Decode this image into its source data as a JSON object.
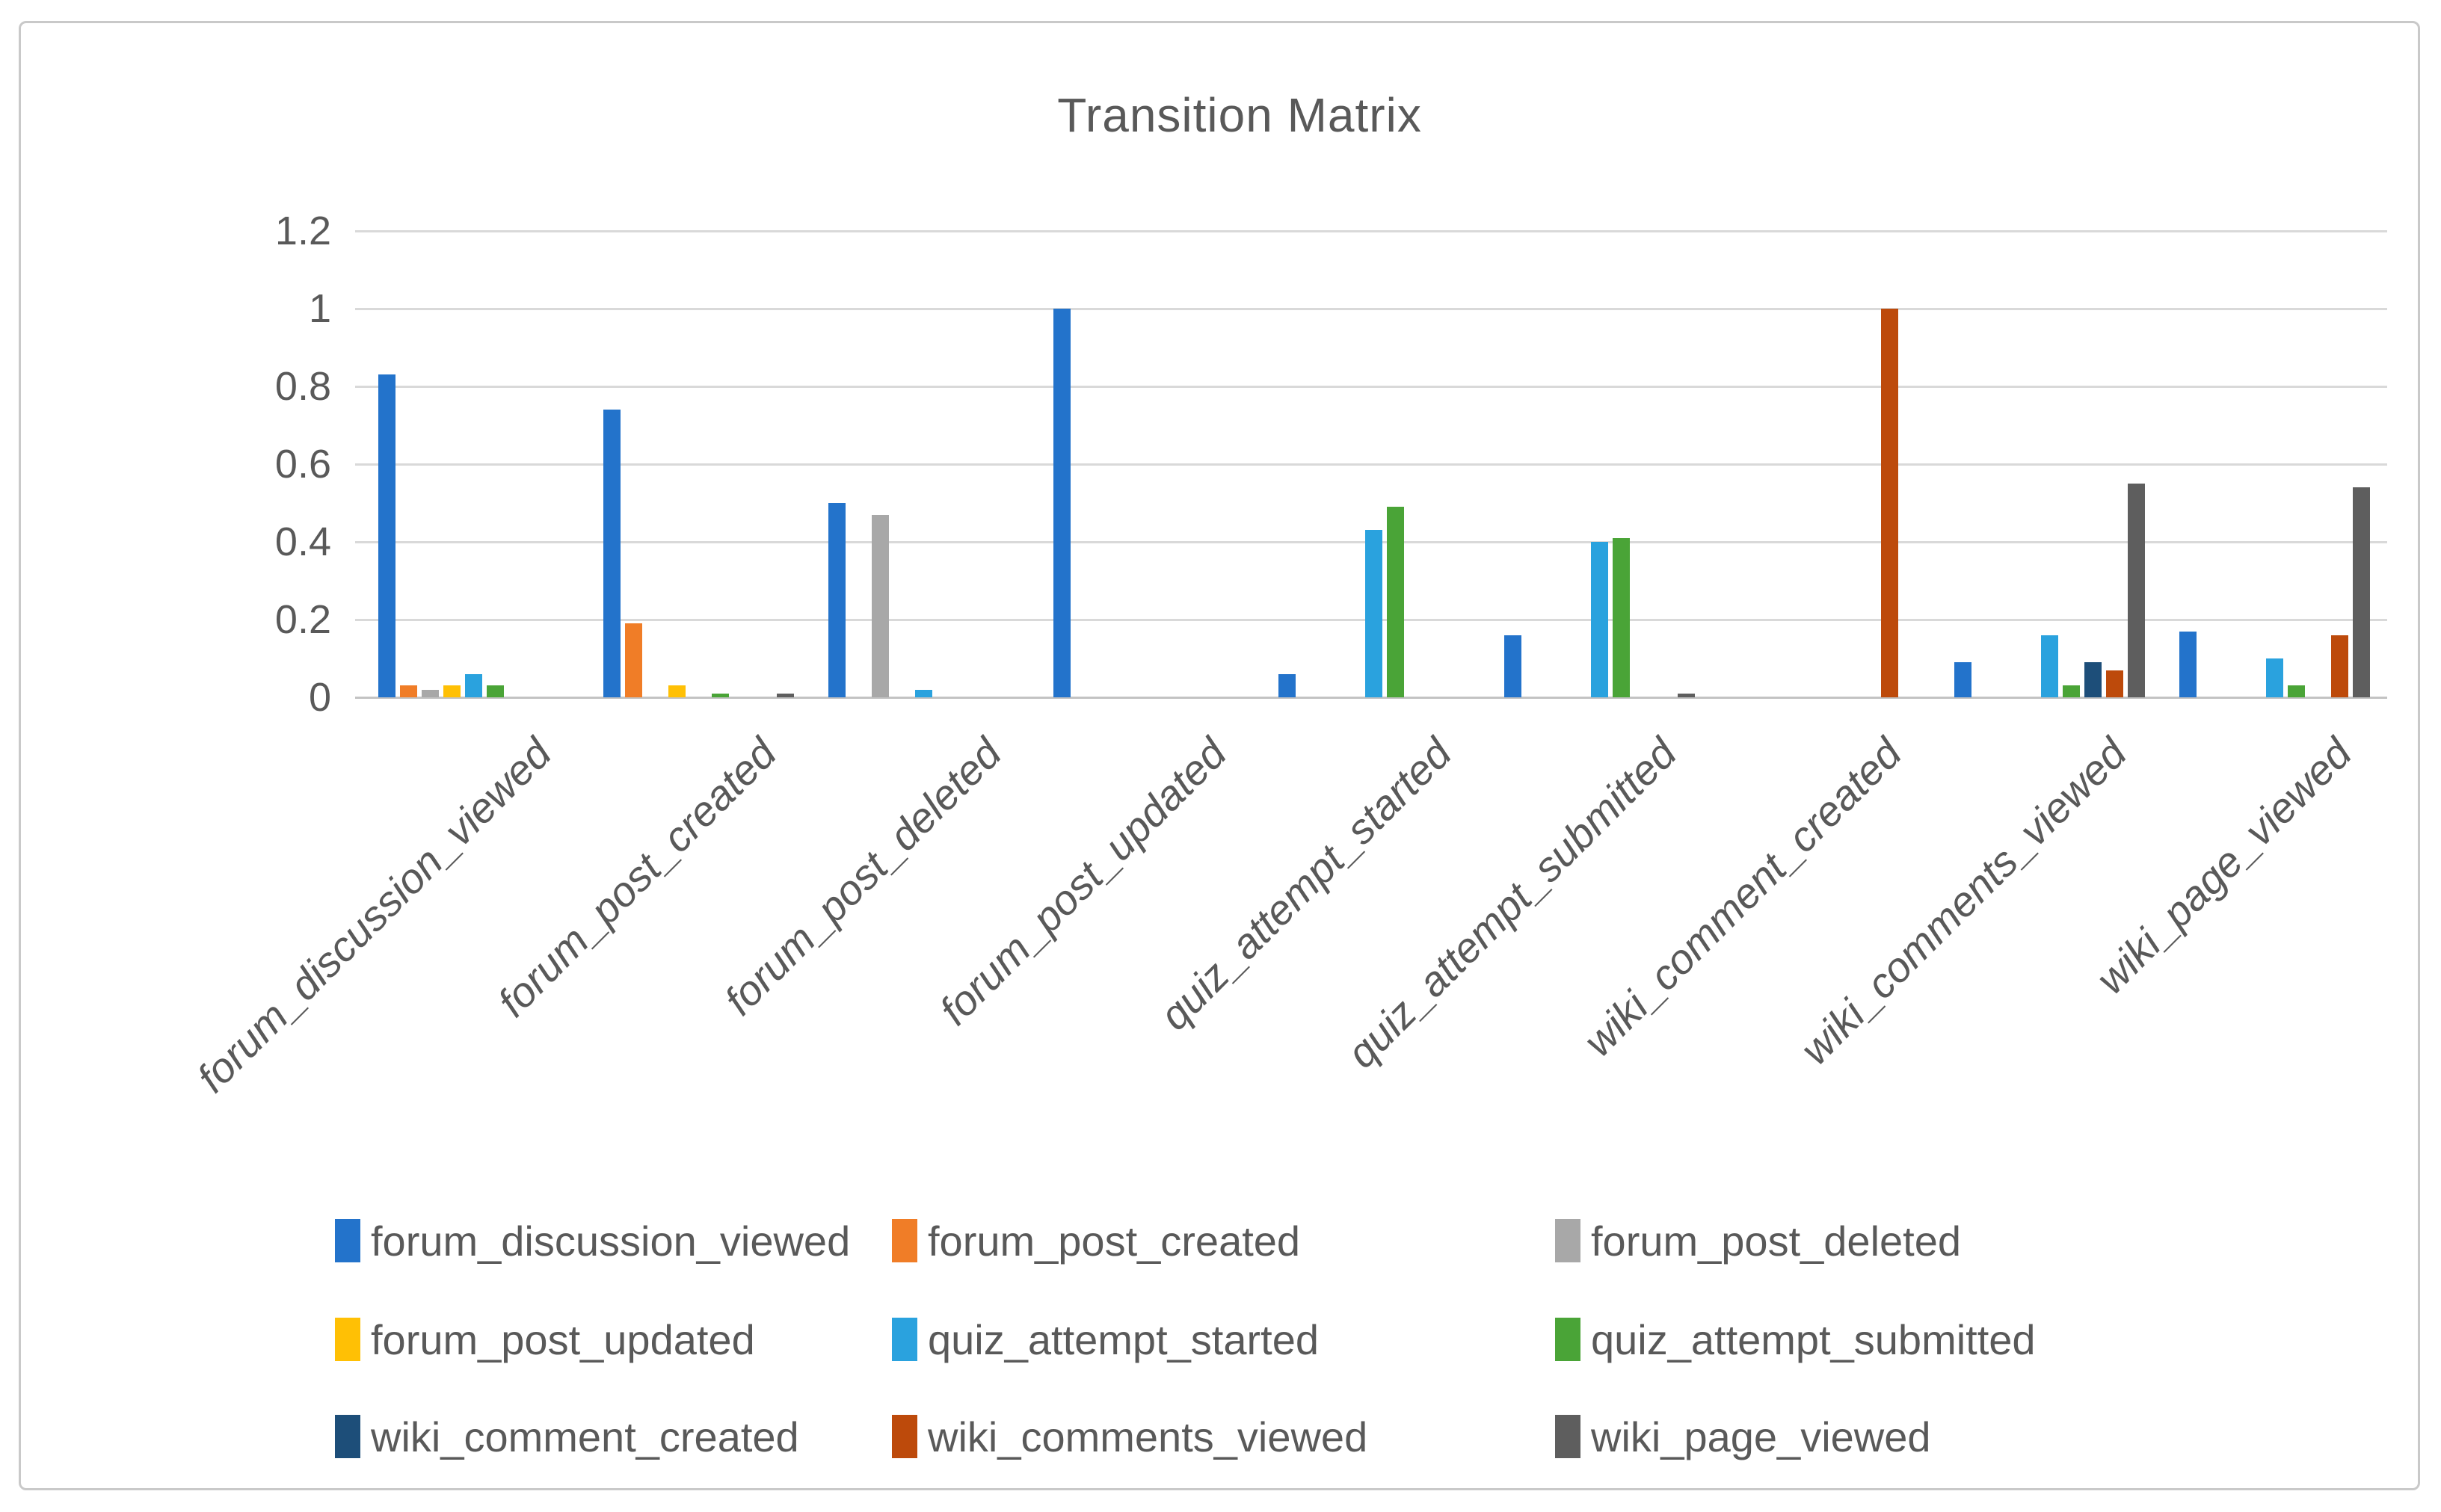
{
  "chart_data": {
    "type": "bar",
    "title": "Transition Matrix",
    "categories": [
      "forum_discussion_viewed",
      "forum_post_created",
      "forum_post_deleted",
      "forum_post_updated",
      "quiz_attempt_started",
      "quiz_attempt_submitted",
      "wiki_comment_created",
      "wiki_comments_viewed",
      "wiki_page_viewed"
    ],
    "series": [
      {
        "name": "forum_discussion_viewed",
        "color": "#2373cb",
        "values": [
          0.83,
          0.74,
          0.5,
          1.0,
          0.06,
          0.16,
          0,
          0.09,
          0.17
        ]
      },
      {
        "name": "forum_post_created",
        "color": "#f07d27",
        "values": [
          0.03,
          0.19,
          0,
          0,
          0,
          0,
          0,
          0,
          0
        ]
      },
      {
        "name": "forum_post_deleted",
        "color": "#a8a8a8",
        "values": [
          0.02,
          0,
          0.47,
          0,
          0,
          0,
          0,
          0,
          0
        ]
      },
      {
        "name": "forum_post_updated",
        "color": "#ffc005",
        "values": [
          0.03,
          0.03,
          0,
          0,
          0,
          0,
          0,
          0,
          0
        ]
      },
      {
        "name": "quiz_attempt_started",
        "color": "#2aa2de",
        "values": [
          0.06,
          0,
          0.02,
          0,
          0.43,
          0.4,
          0,
          0.16,
          0.1
        ]
      },
      {
        "name": "quiz_attempt_submitted",
        "color": "#4aa437",
        "values": [
          0.03,
          0.01,
          0,
          0,
          0.49,
          0.41,
          0,
          0.03,
          0.03
        ]
      },
      {
        "name": "wiki_comment_created",
        "color": "#1d4e79",
        "values": [
          0,
          0,
          0,
          0,
          0,
          0,
          0,
          0.09,
          0
        ]
      },
      {
        "name": "wiki_comments_viewed",
        "color": "#bd4a0b",
        "values": [
          0,
          0,
          0,
          0,
          0,
          0,
          1.0,
          0.07,
          0.16
        ]
      },
      {
        "name": "wiki_page_viewed",
        "color": "#5e5e5e",
        "values": [
          0,
          0.01,
          0,
          0,
          0,
          0.01,
          0,
          0.55,
          0.54
        ]
      }
    ],
    "yticks": [
      1.2,
      1,
      0.8,
      0.6,
      0.4,
      0.2,
      0
    ],
    "ylim": [
      0,
      1.2
    ],
    "grid": true,
    "legend_position": "bottom",
    "legend_rows": 3,
    "legend_columns": 3
  }
}
